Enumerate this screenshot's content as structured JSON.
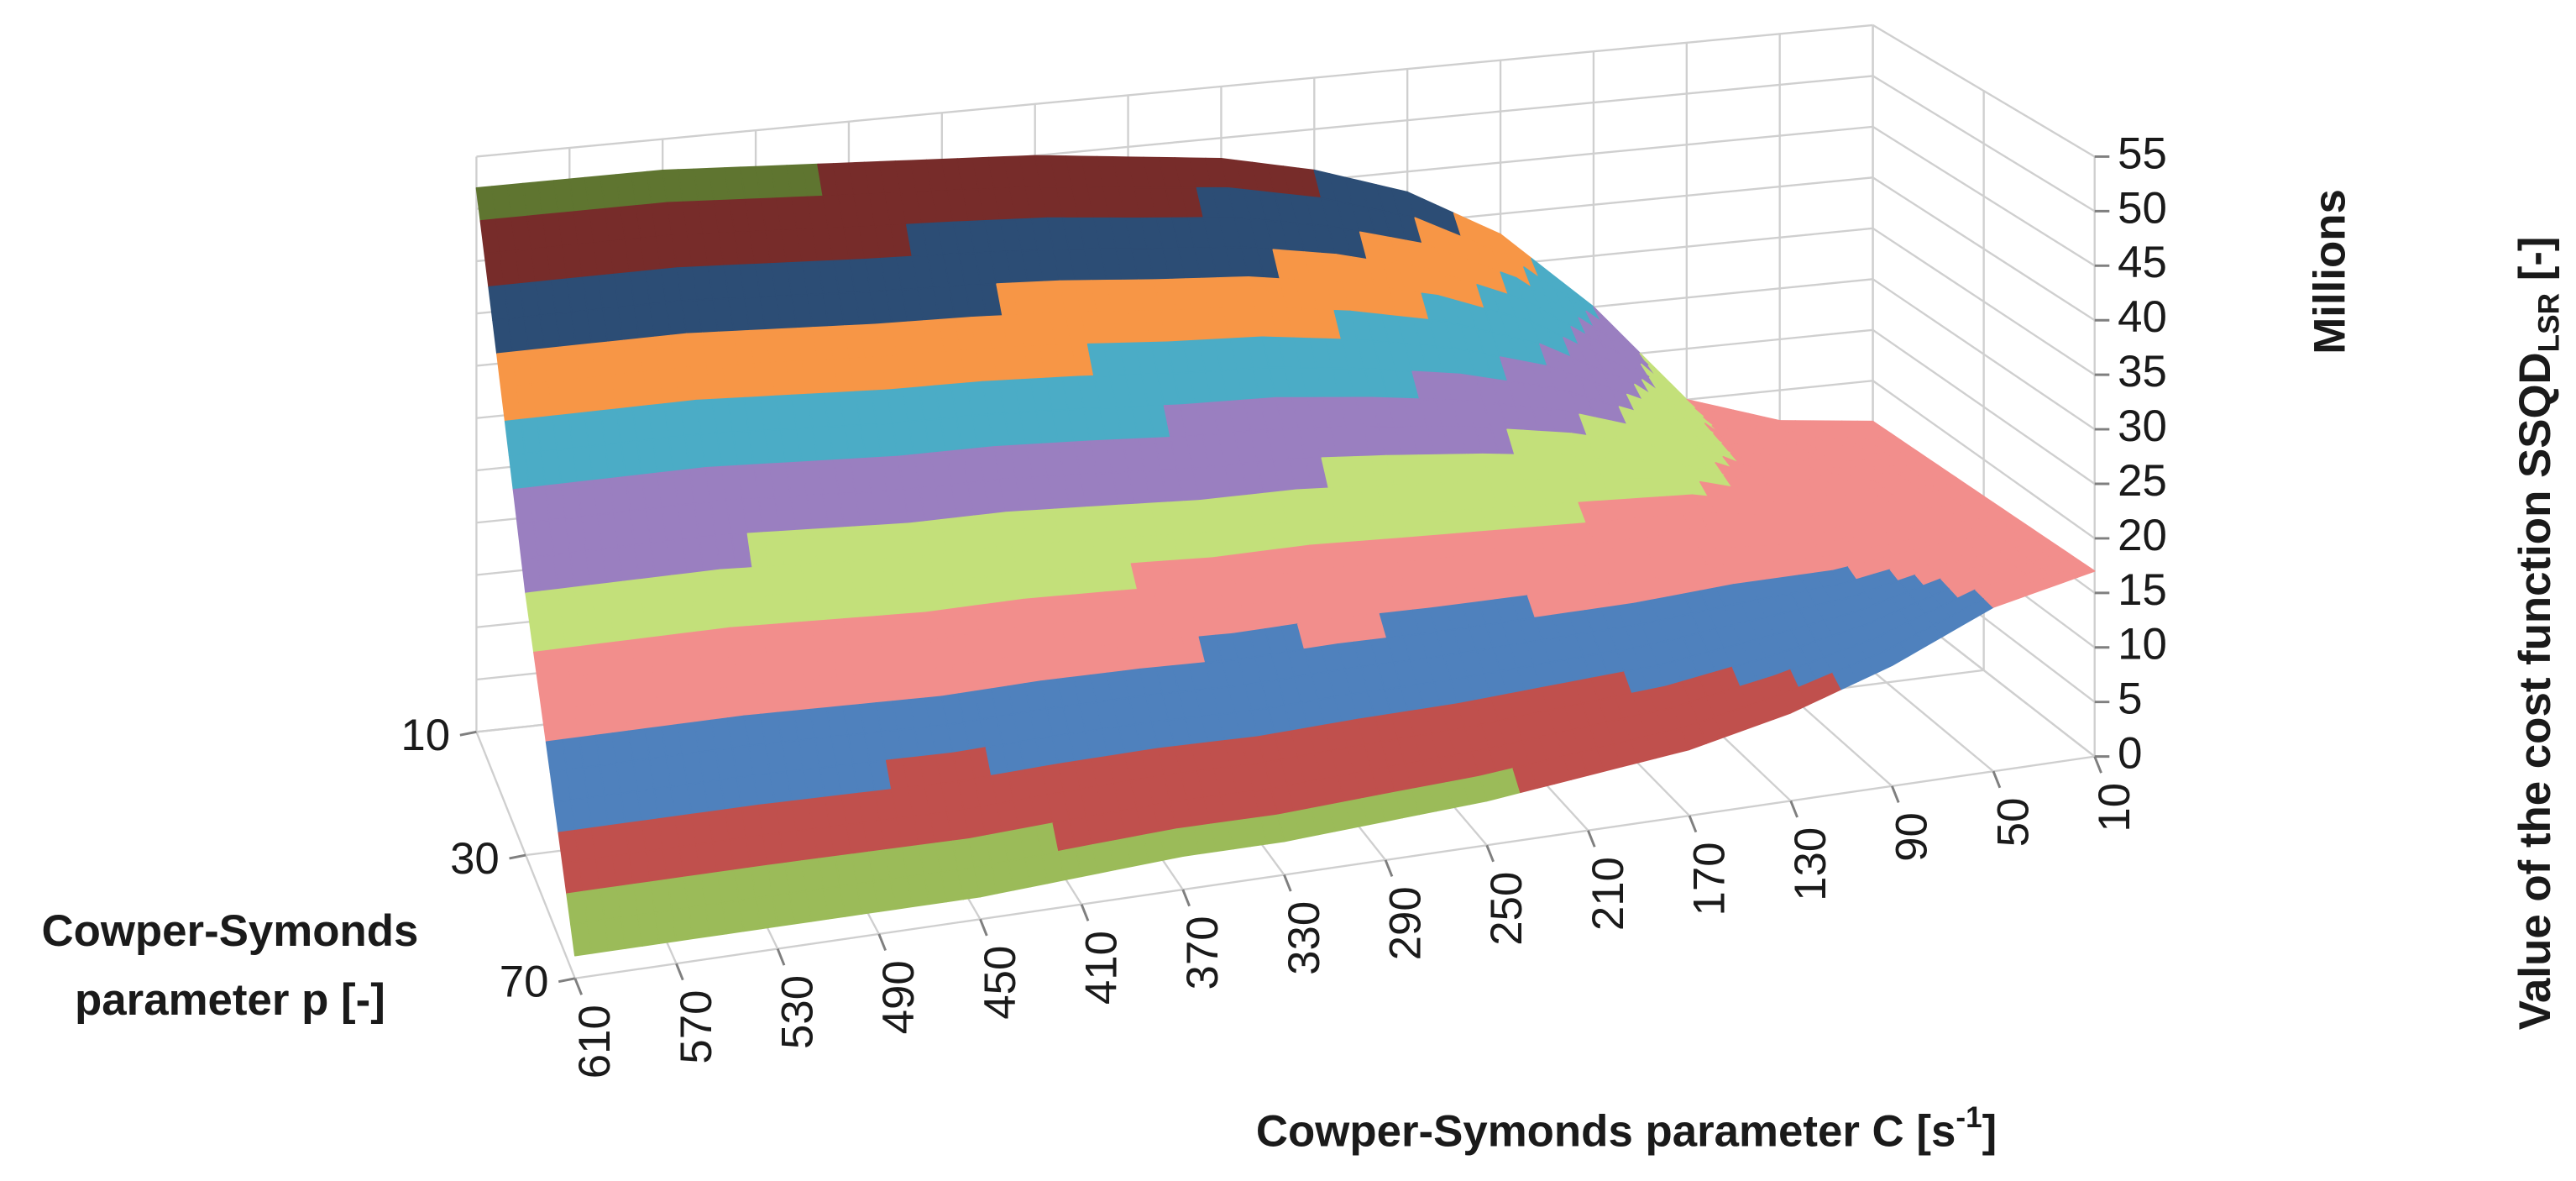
{
  "chart_data": {
    "type": "surface",
    "x_title": "Cowper-Symonds parameter C [s",
    "x_title_sup": "-1",
    "x_title_end": "]",
    "depth_title": [
      "Cowper-Symonds",
      "parameter p [-]"
    ],
    "z_title": "Value of the cost function SSQD",
    "z_title_sub": "LSR",
    "z_title_end": " [-]",
    "z_unit": "Millions",
    "categories": [
      610,
      570,
      530,
      490,
      450,
      410,
      370,
      330,
      290,
      250,
      210,
      170,
      130,
      90,
      50,
      10
    ],
    "series": [
      {
        "name": "10",
        "values": [
          52,
          52,
          52,
          51.5,
          51,
          50.5,
          50,
          49,
          48,
          46,
          43,
          38,
          30,
          20,
          17,
          16
        ]
      },
      {
        "name": "30",
        "values": [
          24,
          24,
          24,
          23.5,
          23,
          23,
          22.5,
          22,
          22,
          21.5,
          21,
          20.5,
          20,
          18,
          17,
          16.5
        ]
      },
      {
        "name": "70",
        "values": [
          2,
          2,
          2,
          2,
          2,
          2.5,
          3,
          3,
          3.5,
          4,
          5,
          6,
          8,
          11,
          15,
          17
        ]
      }
    ],
    "zlim": [
      0,
      55
    ],
    "zticks": [
      0,
      5,
      10,
      15,
      20,
      25,
      30,
      35,
      40,
      45,
      50,
      55
    ],
    "band_colors": [
      "#9bbb59",
      "#c0504d",
      "#4f81bd",
      "#f28e8c",
      "#c3e07a",
      "#9a7fc0",
      "#4bacc6",
      "#f79646",
      "#2c4d75",
      "#772c2a",
      "#5f7530"
    ],
    "grid": true
  }
}
